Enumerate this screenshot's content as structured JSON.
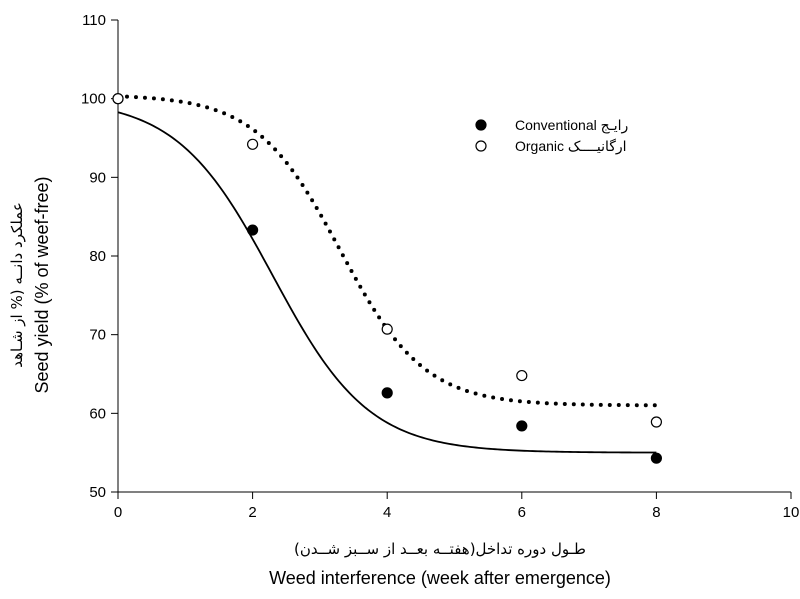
{
  "chart_data": {
    "type": "scatter",
    "xlabel": "Weed interference (week after emergence)",
    "xlabel_fa": "طـول دوره تداخل(هفتــه بعــد از ســبز شــدن)",
    "ylabel": "Seed yield (% of weef-free)",
    "ylabel_fa": "عملکرد دانــه (% از شـاهد",
    "xlim": [
      0,
      10
    ],
    "ylim": [
      50,
      110
    ],
    "xticks": [
      0,
      2,
      4,
      6,
      8,
      10
    ],
    "yticks": [
      50,
      60,
      70,
      80,
      90,
      100,
      110
    ],
    "grid": false,
    "legend_position": "top-right",
    "series": [
      {
        "name": "Conventional",
        "name_fa": "رایـج",
        "marker": "filled-circle",
        "line_style": "solid",
        "x": [
          0,
          2,
          4,
          6,
          8
        ],
        "y": [
          100,
          83.3,
          62.6,
          58.4,
          54.3
        ],
        "fit": {
          "bottom": 55,
          "top": 100,
          "x50": 2.3,
          "k": 1.4
        }
      },
      {
        "name": "Organic",
        "name_fa": "ارگانیــــک",
        "marker": "open-circle",
        "line_style": "dotted",
        "x": [
          0,
          2,
          4,
          6,
          8
        ],
        "y": [
          100,
          94.2,
          70.7,
          64.8,
          58.9
        ],
        "fit": {
          "bottom": 61,
          "top": 100.5,
          "x50": 3.3,
          "k": 1.6
        }
      }
    ]
  }
}
